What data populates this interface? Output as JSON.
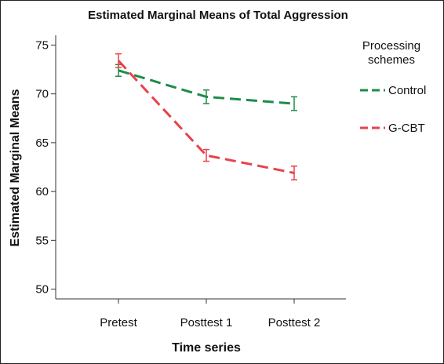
{
  "chart_data": {
    "type": "line",
    "title": "Estimated Marginal Means of Total Aggression",
    "xlabel": "Time series",
    "ylabel": "Estimated Marginal Means",
    "categories": [
      "Pretest",
      "Posttest 1",
      "Posttest 2"
    ],
    "ylim": [
      49,
      76
    ],
    "yticks": [
      50,
      55,
      60,
      65,
      70,
      75
    ],
    "grid": false,
    "legend": {
      "title": "Processing schemes",
      "title_lines": [
        "Processing",
        "schemes"
      ],
      "placement": "right"
    },
    "series": [
      {
        "name": "Control",
        "color": "#1e8c4b",
        "values": [
          72.4,
          69.7,
          69.0
        ],
        "error": [
          [
            71.8,
            73.0
          ],
          [
            69.0,
            70.4
          ],
          [
            68.3,
            69.7
          ]
        ]
      },
      {
        "name": "G-CBT",
        "color": "#e8414a",
        "values": [
          73.4,
          63.7,
          61.9
        ],
        "error": [
          [
            72.7,
            74.1
          ],
          [
            63.1,
            64.3
          ],
          [
            61.2,
            62.6
          ]
        ]
      }
    ]
  }
}
